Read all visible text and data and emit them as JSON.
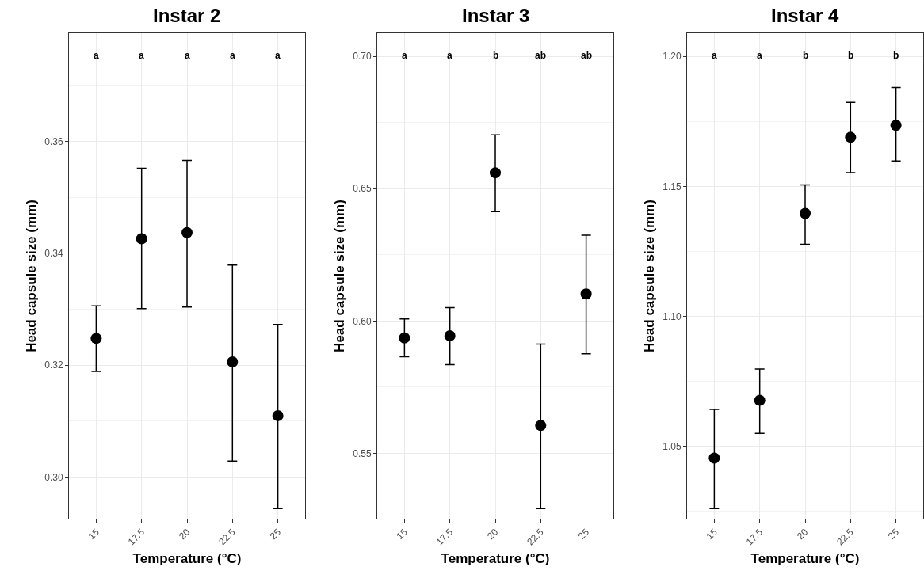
{
  "chart_data": [
    {
      "type": "scatter",
      "title": "Instar 2",
      "xlabel": "Temperature (°C)",
      "ylabel": "Head capsule size (mm)",
      "categories": [
        "15",
        "17.5",
        "20",
        "22.5",
        "25"
      ],
      "color": "#000000",
      "marker": "circle",
      "grid": true,
      "values": [
        0.3248,
        0.3426,
        0.3437,
        0.3206,
        0.311
      ],
      "errors": [
        [
          0.3189,
          0.3306
        ],
        [
          0.3301,
          0.3552
        ],
        [
          0.3304,
          0.3566
        ],
        [
          0.3029,
          0.3379
        ],
        [
          0.2944,
          0.3273
        ]
      ],
      "ylim": [
        0.2926,
        0.3793
      ],
      "yticks": [
        {
          "value": 0.3,
          "label": "0.30"
        },
        {
          "value": 0.32,
          "label": "0.32"
        },
        {
          "value": 0.34,
          "label": "0.34"
        },
        {
          "value": 0.36,
          "label": "0.36"
        }
      ],
      "annotations": [
        "a",
        "a",
        "a",
        "a",
        "a"
      ]
    },
    {
      "type": "scatter",
      "title": "Instar 3",
      "xlabel": "Temperature (°C)",
      "ylabel": "Head capsule size (mm)",
      "categories": [
        "15",
        "17.5",
        "20",
        "22.5",
        "25"
      ],
      "color": "#000000",
      "marker": "circle",
      "grid": true,
      "values": [
        0.5936,
        0.5944,
        0.656,
        0.5605,
        0.6102
      ],
      "errors": [
        [
          0.5865,
          0.6008
        ],
        [
          0.5835,
          0.605
        ],
        [
          0.6413,
          0.6703
        ],
        [
          0.5291,
          0.5913
        ],
        [
          0.5876,
          0.6324
        ]
      ],
      "ylim": [
        0.5253,
        0.7087
      ],
      "yticks": [
        {
          "value": 0.55,
          "label": "0.55"
        },
        {
          "value": 0.6,
          "label": "0.60"
        },
        {
          "value": 0.65,
          "label": "0.65"
        },
        {
          "value": 0.7,
          "label": "0.70"
        }
      ],
      "annotations": [
        "a",
        "a",
        "b",
        "ab",
        "ab"
      ]
    },
    {
      "type": "scatter",
      "title": "Instar 4",
      "xlabel": "Temperature (°C)",
      "ylabel": "Head capsule size (mm)",
      "categories": [
        "15",
        "17.5",
        "20",
        "22.5",
        "25"
      ],
      "color": "#000000",
      "marker": "circle",
      "grid": true,
      "values": [
        1.0455,
        1.0677,
        1.1396,
        1.1689,
        1.1735
      ],
      "errors": [
        [
          1.0261,
          1.0642
        ],
        [
          1.055,
          1.0798
        ],
        [
          1.1277,
          1.1506
        ],
        [
          1.1553,
          1.1823
        ],
        [
          1.1598,
          1.188
        ]
      ],
      "ylim": [
        1.0222,
        1.2089
      ],
      "yticks": [
        {
          "value": 1.05,
          "label": "1.05"
        },
        {
          "value": 1.1,
          "label": "1.10"
        },
        {
          "value": 1.15,
          "label": "1.15"
        },
        {
          "value": 1.2,
          "label": "1.20"
        }
      ],
      "annotations": [
        "a",
        "a",
        "b",
        "b",
        "b"
      ]
    }
  ]
}
